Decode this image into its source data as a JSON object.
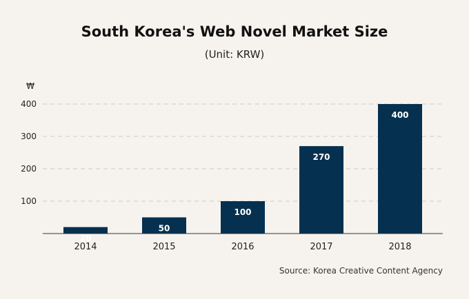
{
  "chart_data": {
    "type": "bar",
    "title": "South Korea's Web Novel Market Size",
    "subtitle": "(Unit: KRW)",
    "ylabel": "₩",
    "xlabel": "",
    "categories": [
      "2014",
      "2015",
      "2016",
      "2017",
      "2018"
    ],
    "values": [
      20,
      50,
      100,
      270,
      400
    ],
    "data_labels": [
      "20",
      "50",
      "100",
      "270",
      "400"
    ],
    "yticks": [
      100,
      200,
      300,
      400
    ],
    "ylim": [
      0,
      400
    ],
    "grid": true,
    "legend": "none",
    "source": "Source: Korea Creative Content Agency",
    "colors": {
      "bar": "#06304f",
      "grid": "#cfcac3",
      "axis": "#333333",
      "background": "#f6f3ee"
    }
  }
}
